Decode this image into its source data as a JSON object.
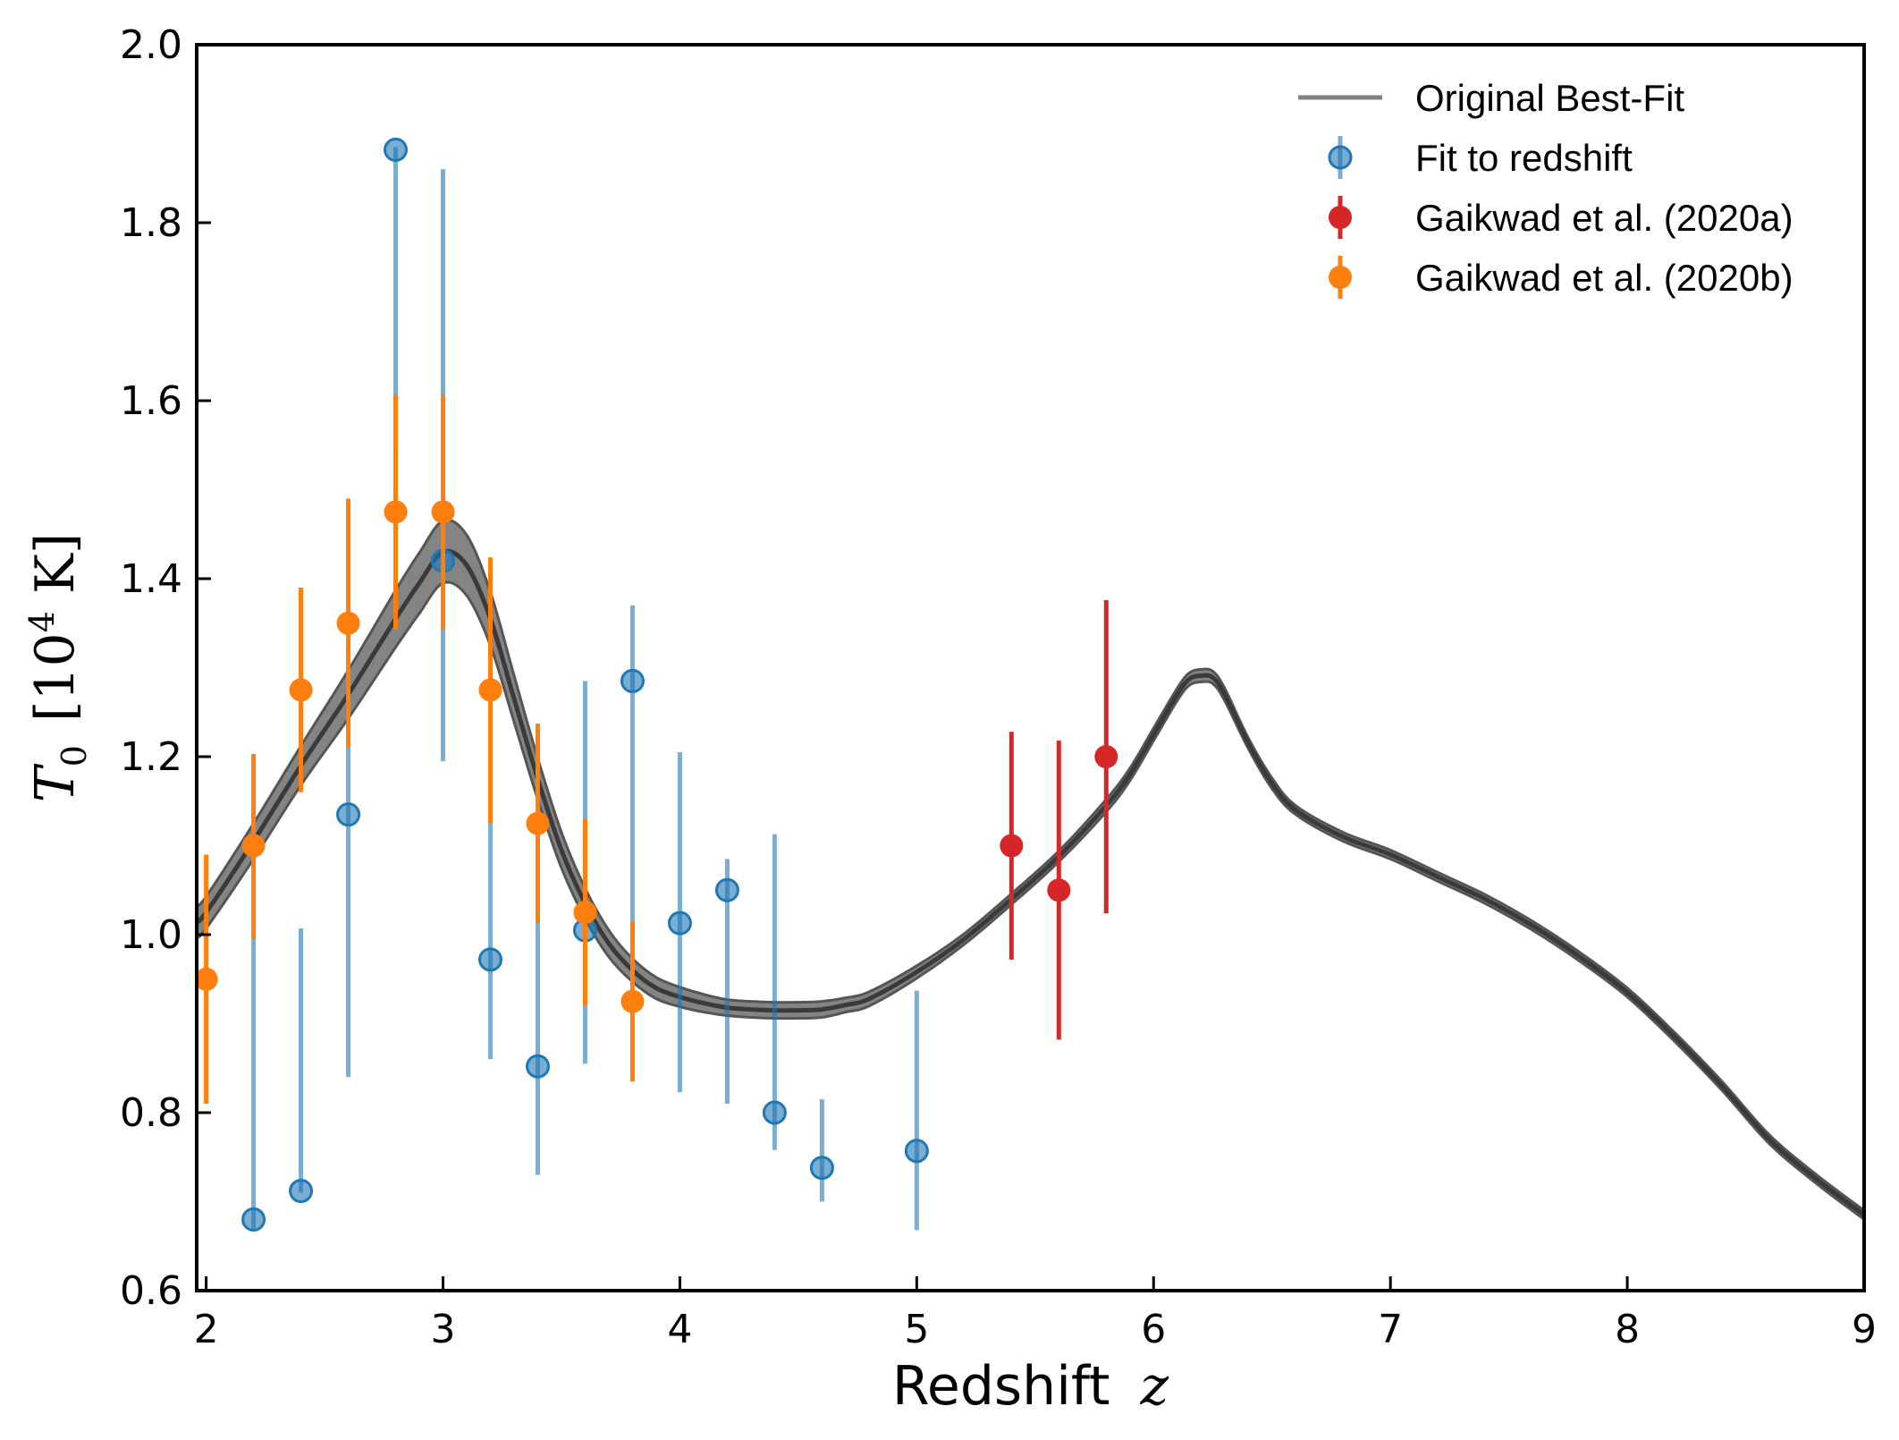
{
  "chart_data": {
    "type": "scatter",
    "xlabel_text": "Redshift",
    "xlabel_var": "z",
    "ylabel_var": "T",
    "ylabel_sub": "0",
    "ylabel_unit_open": "[10",
    "ylabel_unit_exp": "4",
    "ylabel_unit_close": " K]",
    "xlim": [
      1.96,
      9.0
    ],
    "ylim": [
      0.6,
      2.0
    ],
    "xticks": [
      "2",
      "3",
      "4",
      "5",
      "6",
      "7",
      "8",
      "9"
    ],
    "yticks": [
      "0.6",
      "0.8",
      "1.0",
      "1.2",
      "1.4",
      "1.6",
      "1.8",
      "2.0"
    ],
    "legend_position": "top-right",
    "colors": {
      "curve": "#3a3a3a",
      "band": "#6e6e6e",
      "legend_line": "#808080",
      "fit": "#1f77b4",
      "gaikwad_a": "#d62728",
      "gaikwad_b": "#ff7f0e"
    },
    "best_fit": {
      "name": "Original Best-Fit",
      "x": [
        1.96,
        2.0,
        2.2,
        2.4,
        2.6,
        2.8,
        2.9,
        3.0,
        3.1,
        3.2,
        3.3,
        3.4,
        3.5,
        3.6,
        3.7,
        3.8,
        3.9,
        4.0,
        4.1,
        4.2,
        4.3,
        4.4,
        4.5,
        4.6,
        4.7,
        4.8,
        5.0,
        5.2,
        5.4,
        5.6,
        5.8,
        5.9,
        6.0,
        6.1,
        6.15,
        6.2,
        6.25,
        6.3,
        6.4,
        6.5,
        6.6,
        6.8,
        7.0,
        7.2,
        7.4,
        7.6,
        7.8,
        8.0,
        8.2,
        8.4,
        8.6,
        8.8,
        9.0
      ],
      "y": [
        1.015,
        1.025,
        1.105,
        1.19,
        1.27,
        1.355,
        1.395,
        1.43,
        1.415,
        1.355,
        1.265,
        1.175,
        1.095,
        1.035,
        0.99,
        0.96,
        0.94,
        0.93,
        0.923,
        0.918,
        0.916,
        0.915,
        0.915,
        0.916,
        0.921,
        0.928,
        0.958,
        0.995,
        1.04,
        1.088,
        1.145,
        1.18,
        1.225,
        1.27,
        1.287,
        1.291,
        1.289,
        1.27,
        1.215,
        1.17,
        1.14,
        1.11,
        1.09,
        1.065,
        1.04,
        1.01,
        0.975,
        0.935,
        0.885,
        0.83,
        0.77,
        0.725,
        0.685
      ],
      "halfwidth": [
        0.018,
        0.018,
        0.02,
        0.022,
        0.027,
        0.032,
        0.034,
        0.035,
        0.034,
        0.03,
        0.026,
        0.023,
        0.02,
        0.017,
        0.015,
        0.013,
        0.012,
        0.011,
        0.01,
        0.009,
        0.009,
        0.009,
        0.009,
        0.009,
        0.008,
        0.008,
        0.007,
        0.006,
        0.006,
        0.006,
        0.007,
        0.007,
        0.007,
        0.007,
        0.007,
        0.007,
        0.007,
        0.007,
        0.006,
        0.006,
        0.005,
        0.005,
        0.005,
        0.005,
        0.005,
        0.005,
        0.005,
        0.005,
        0.005,
        0.005,
        0.005,
        0.005,
        0.005
      ]
    },
    "series": [
      {
        "name": "Fit to redshift",
        "marker": "open",
        "points": [
          {
            "x": 2.2,
            "y": 0.68,
            "lo": 0.67,
            "hi": 1.0
          },
          {
            "x": 2.4,
            "y": 0.712,
            "lo": 0.71,
            "hi": 1.007
          },
          {
            "x": 2.6,
            "y": 1.135,
            "lo": 0.84,
            "hi": 1.21
          },
          {
            "x": 2.8,
            "y": 1.882,
            "lo": 1.55,
            "hi": 1.885
          },
          {
            "x": 3.0,
            "y": 1.42,
            "lo": 1.195,
            "hi": 1.86
          },
          {
            "x": 3.2,
            "y": 0.972,
            "lo": 0.86,
            "hi": 1.128
          },
          {
            "x": 3.4,
            "y": 0.852,
            "lo": 0.73,
            "hi": 1.013
          },
          {
            "x": 3.6,
            "y": 1.005,
            "lo": 0.855,
            "hi": 1.285
          },
          {
            "x": 3.8,
            "y": 1.285,
            "lo": 0.99,
            "hi": 1.37
          },
          {
            "x": 4.0,
            "y": 1.013,
            "lo": 0.823,
            "hi": 1.205
          },
          {
            "x": 4.2,
            "y": 1.05,
            "lo": 0.81,
            "hi": 1.085
          },
          {
            "x": 4.4,
            "y": 0.8,
            "lo": 0.758,
            "hi": 1.113
          },
          {
            "x": 4.6,
            "y": 0.738,
            "lo": 0.7,
            "hi": 0.815
          },
          {
            "x": 5.0,
            "y": 0.757,
            "lo": 0.668,
            "hi": 0.937
          }
        ]
      },
      {
        "name": "Gaikwad et al. (2020a)",
        "marker": "filled",
        "points": [
          {
            "x": 5.4,
            "y": 1.1,
            "lo": 0.972,
            "hi": 1.228
          },
          {
            "x": 5.6,
            "y": 1.05,
            "lo": 0.882,
            "hi": 1.218
          },
          {
            "x": 5.8,
            "y": 1.2,
            "lo": 1.024,
            "hi": 1.376
          }
        ]
      },
      {
        "name": "Gaikwad et al. (2020b)",
        "marker": "filled",
        "points": [
          {
            "x": 2.0,
            "y": 0.95,
            "lo": 0.81,
            "hi": 1.09
          },
          {
            "x": 2.2,
            "y": 1.1,
            "lo": 0.995,
            "hi": 1.203
          },
          {
            "x": 2.4,
            "y": 1.275,
            "lo": 1.16,
            "hi": 1.39
          },
          {
            "x": 2.6,
            "y": 1.35,
            "lo": 1.21,
            "hi": 1.49
          },
          {
            "x": 2.8,
            "y": 1.475,
            "lo": 1.343,
            "hi": 1.607
          },
          {
            "x": 3.0,
            "y": 1.475,
            "lo": 1.343,
            "hi": 1.607
          },
          {
            "x": 3.2,
            "y": 1.275,
            "lo": 1.126,
            "hi": 1.424
          },
          {
            "x": 3.4,
            "y": 1.125,
            "lo": 1.013,
            "hi": 1.237
          },
          {
            "x": 3.6,
            "y": 1.025,
            "lo": 0.92,
            "hi": 1.13
          },
          {
            "x": 3.8,
            "y": 0.925,
            "lo": 0.835,
            "hi": 1.015
          }
        ]
      }
    ]
  }
}
